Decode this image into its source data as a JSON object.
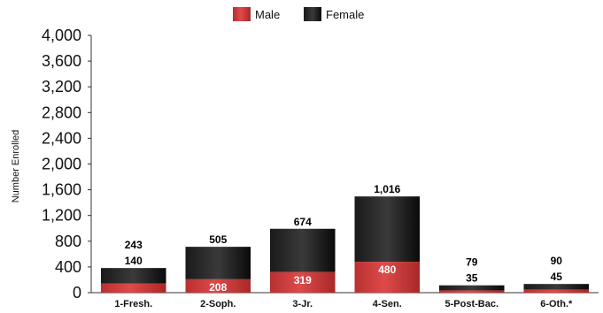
{
  "chart_data": {
    "type": "bar",
    "stacked": true,
    "categories": [
      "1-Fresh.",
      "2-Soph.",
      "3-Jr.",
      "4-Sen.",
      "5-Post-Bac.",
      "6-Oth.*"
    ],
    "series": [
      {
        "name": "Male",
        "values": [
          140,
          208,
          319,
          480,
          35,
          45
        ],
        "color": "#d03a3a"
      },
      {
        "name": "Female",
        "values": [
          243,
          505,
          674,
          1016,
          79,
          90
        ],
        "color": "#111111"
      }
    ],
    "ylabel": "Number Enrolled",
    "xlabel": "",
    "ylim": [
      0,
      4000
    ],
    "yticks": [
      "0",
      "400",
      "800",
      "1,200",
      "1,600",
      "2,000",
      "2,400",
      "2,800",
      "3,200",
      "3,600",
      "4,000"
    ],
    "value_labels": {
      "Male": [
        "140",
        "208",
        "319",
        "480",
        "35",
        "45"
      ],
      "Female": [
        "243",
        "505",
        "674",
        "1,016",
        "79",
        "90"
      ]
    },
    "legend_position": "top",
    "grid": false
  }
}
